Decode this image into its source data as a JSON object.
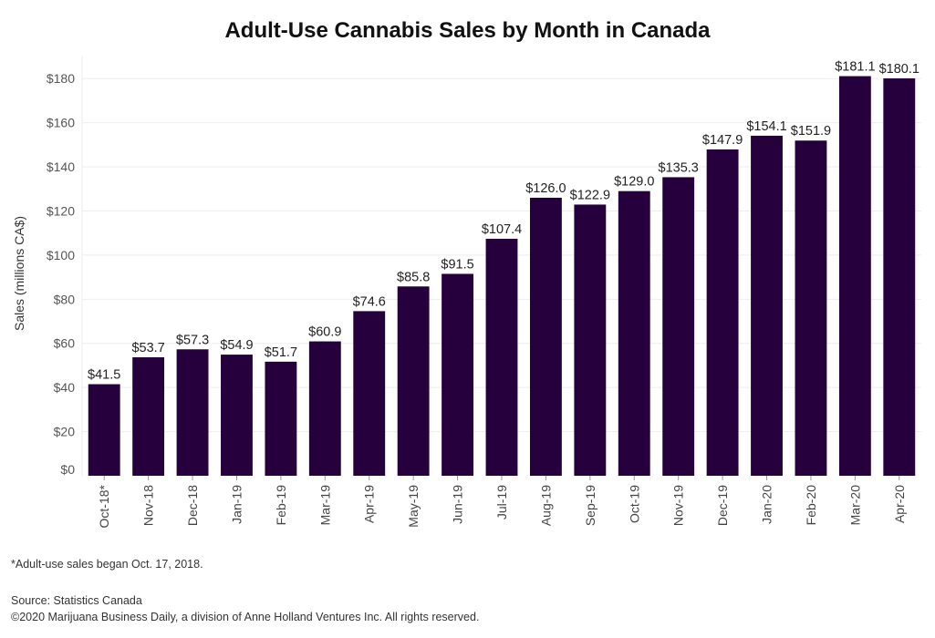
{
  "chart_data": {
    "type": "bar",
    "title": "Adult-Use Cannabis Sales by Month in Canada",
    "xlabel": "",
    "ylabel": "Sales (millions CA$)",
    "ylim": [
      0,
      190
    ],
    "yticks": [
      0,
      20,
      40,
      60,
      80,
      100,
      120,
      140,
      160,
      180
    ],
    "ytick_labels": [
      "$0",
      "$20",
      "$40",
      "$60",
      "$80",
      "$100",
      "$120",
      "$140",
      "$160",
      "$180"
    ],
    "grid": true,
    "bar_color": "#25003d",
    "categories": [
      "Oct-18*",
      "Nov-18",
      "Dec-18",
      "Jan-19",
      "Feb-19",
      "Mar-19",
      "Apr-19",
      "May-19",
      "Jun-19",
      "Jul-19",
      "Aug-19",
      "Sep-19",
      "Oct-19",
      "Nov-19",
      "Dec-19",
      "Jan-20",
      "Feb-20",
      "Mar-20",
      "Apr-20"
    ],
    "values": [
      41.5,
      53.7,
      57.3,
      54.9,
      51.7,
      60.9,
      74.6,
      85.8,
      91.5,
      107.4,
      126.0,
      122.9,
      129.0,
      135.3,
      147.9,
      154.1,
      151.9,
      181.1,
      180.1
    ],
    "value_labels": [
      "$41.5",
      "$53.7",
      "$57.3",
      "$54.9",
      "$51.7",
      "$60.9",
      "$74.6",
      "$85.8",
      "$91.5",
      "$107.4",
      "$126.0",
      "$122.9",
      "$129.0",
      "$135.3",
      "$147.9",
      "$154.1",
      "$151.9",
      "$181.1",
      "$180.1"
    ]
  },
  "notes": {
    "footnote": "*Adult-use sales began Oct. 17, 2018.",
    "source": "Source: Statistics Canada",
    "copyright": "©2020 Marijuana Business Daily, a division of Anne Holland Ventures Inc. All rights reserved."
  }
}
